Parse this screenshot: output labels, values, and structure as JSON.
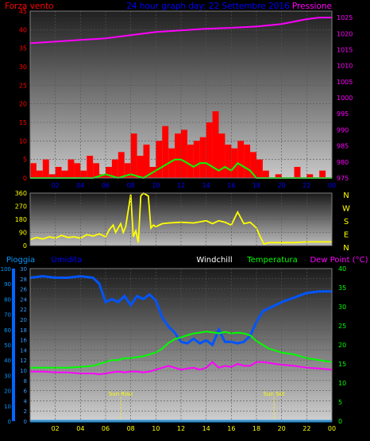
{
  "header": {
    "left_label": "Forza vento",
    "center_label": "24 hour graph day: 22 Settembre 2016",
    "right_label": "Pressione",
    "left_color": "#ff0000",
    "center_color": "#0000ff",
    "right_color": "#ff00ff"
  },
  "chart_data": [
    {
      "type": "bar",
      "id": "wind-pressure",
      "x_unit": "hour",
      "x_ticks": [
        "02",
        "04",
        "06",
        "08",
        "10",
        "12",
        "14",
        "16",
        "18",
        "20",
        "22",
        "00"
      ],
      "y_left_label": "Forza vento",
      "y_left_ticks": [
        0,
        5,
        10,
        15,
        20,
        25,
        30,
        35,
        40,
        45
      ],
      "y_left_range": [
        0,
        45
      ],
      "y_right_label": "Pressione",
      "y_right_ticks": [
        975,
        980,
        985,
        990,
        995,
        1000,
        1005,
        1010,
        1015,
        1020,
        1025
      ],
      "y_right_range": [
        975,
        1027
      ],
      "grid": true,
      "series": [
        {
          "kind": "bar",
          "color": "#ff0000",
          "axis": "left",
          "x": [
            0,
            0.5,
            1,
            1.5,
            2,
            2.5,
            3,
            3.5,
            4,
            4.5,
            5,
            5.5,
            6,
            6.5,
            7,
            7.5,
            8,
            8.5,
            9,
            9.5,
            10,
            10.5,
            11,
            11.5,
            12,
            12.5,
            13,
            13.5,
            14,
            14.5,
            15,
            15.5,
            16,
            16.5,
            17,
            17.5,
            18,
            18.5,
            19,
            19.5,
            20,
            20.5,
            21,
            21.5,
            22,
            22.5,
            23,
            23.5
          ],
          "values": [
            4,
            2,
            5,
            1,
            3,
            2,
            5,
            4,
            2,
            6,
            4,
            1,
            3,
            5,
            7,
            4,
            12,
            6,
            9,
            3,
            10,
            14,
            8,
            12,
            13,
            9,
            10,
            11,
            15,
            18,
            12,
            9,
            8,
            10,
            9,
            7,
            5,
            2,
            0,
            1,
            0,
            0,
            3,
            0,
            1,
            0,
            2,
            0
          ]
        },
        {
          "kind": "line",
          "color": "#00ff00",
          "axis": "left",
          "x": [
            0,
            2,
            4,
            5,
            6,
            7,
            8,
            9,
            10,
            10.5,
            11,
            11.5,
            12,
            12.5,
            13,
            13.5,
            14,
            14.5,
            15,
            15.5,
            16,
            16.5,
            17,
            17.5,
            18,
            19,
            20,
            22,
            24
          ],
          "values": [
            0,
            0,
            0,
            0,
            1,
            0,
            1,
            0,
            2,
            3,
            4,
            5,
            5,
            4,
            3,
            4,
            4,
            3,
            2,
            3,
            2,
            4,
            3,
            2,
            0,
            0,
            0,
            0,
            0
          ]
        },
        {
          "kind": "line",
          "color": "#ff00ff",
          "axis": "right",
          "x": [
            0,
            2,
            4,
            6,
            8,
            10,
            12,
            14,
            16,
            18,
            20,
            22,
            23,
            24
          ],
          "values": [
            1017,
            1017.5,
            1018,
            1018.5,
            1019.5,
            1020.5,
            1021,
            1021.5,
            1021.8,
            1022.2,
            1023,
            1024.5,
            1025,
            1025
          ]
        }
      ]
    },
    {
      "type": "line",
      "id": "wind-direction",
      "x_ticks": [
        "02",
        "04",
        "06",
        "08",
        "10",
        "12",
        "14",
        "16",
        "18",
        "20",
        "22",
        "00"
      ],
      "y_left_ticks": [
        0,
        90,
        180,
        270,
        360
      ],
      "y_left_range": [
        0,
        360
      ],
      "y_right_ticks": [
        "N",
        "W",
        "S",
        "E",
        "N"
      ],
      "grid": true,
      "series": [
        {
          "kind": "line",
          "color": "#ffff00",
          "x": [
            0,
            0.5,
            1,
            1.5,
            2,
            2.5,
            3,
            3.5,
            4,
            4.5,
            5,
            5.5,
            6,
            6.3,
            6.6,
            6.8,
            7,
            7.2,
            7.4,
            7.6,
            8,
            8.2,
            8.4,
            8.6,
            8.8,
            9,
            9.2,
            9.4,
            9.6,
            9.8,
            10,
            10.5,
            11,
            12,
            13,
            14,
            14.5,
            15,
            15.5,
            16,
            16.5,
            17,
            17.5,
            18,
            18.3,
            18.6,
            19,
            20,
            21,
            22,
            23,
            24
          ],
          "values": [
            40,
            55,
            45,
            60,
            50,
            70,
            55,
            60,
            50,
            75,
            65,
            80,
            60,
            110,
            140,
            90,
            120,
            150,
            90,
            130,
            350,
            60,
            100,
            20,
            340,
            360,
            350,
            340,
            120,
            140,
            130,
            150,
            155,
            160,
            155,
            170,
            150,
            170,
            160,
            140,
            230,
            150,
            160,
            120,
            60,
            10,
            20,
            20,
            20,
            25,
            25,
            25
          ]
        }
      ]
    },
    {
      "type": "line",
      "id": "temperature-humidity",
      "x_ticks": [
        "02",
        "04",
        "06",
        "08",
        "10",
        "12",
        "14",
        "16",
        "18",
        "20",
        "22",
        "00"
      ],
      "y_left_ticks": [
        0,
        10,
        20,
        30,
        40,
        50,
        60,
        70,
        80,
        90,
        100
      ],
      "y_left_range": [
        0,
        100
      ],
      "y_hum_ticks": [
        0,
        2,
        4,
        6,
        8,
        10,
        12,
        14,
        16,
        18,
        20,
        22,
        24,
        26,
        28,
        30
      ],
      "y_right_ticks": [
        0,
        5,
        10,
        15,
        20,
        25,
        30,
        35,
        40
      ],
      "y_right_range": [
        0,
        40
      ],
      "grid": true,
      "series": [
        {
          "name": "Umidita",
          "kind": "line",
          "color": "#0055ff",
          "x": [
            0,
            1,
            2,
            3,
            4,
            5,
            5.5,
            6,
            6.5,
            7,
            7.5,
            8,
            8.5,
            9,
            9.5,
            10,
            10.5,
            11,
            11.5,
            12,
            12.5,
            13,
            13.5,
            14,
            14.5,
            15,
            15.5,
            16,
            16.5,
            17,
            17.5,
            18,
            18.5,
            19,
            19.5,
            20,
            21,
            22,
            23,
            24
          ],
          "values": [
            94,
            95,
            94,
            94,
            95,
            94,
            90,
            78,
            80,
            78,
            82,
            76,
            82,
            80,
            83,
            79,
            68,
            62,
            58,
            52,
            51,
            54,
            51,
            53,
            50,
            60,
            52,
            52,
            51,
            52,
            56,
            65,
            72,
            74,
            76,
            78,
            81,
            84,
            85,
            85
          ]
        },
        {
          "name": "Pioggia",
          "kind": "line",
          "color": "#0099ff",
          "axis": "left",
          "x": [
            0,
            24
          ],
          "values": [
            0,
            0
          ]
        },
        {
          "name": "Temperatura",
          "kind": "line",
          "color": "#00ff00",
          "axis": "right",
          "x": [
            0,
            1,
            2,
            3,
            4,
            5,
            5.5,
            6,
            6.5,
            7,
            7.5,
            8,
            8.5,
            9,
            9.5,
            10,
            10.5,
            11,
            11.5,
            12,
            12.5,
            13,
            13.5,
            14,
            14.5,
            15,
            15.5,
            16,
            16.5,
            17,
            17.5,
            18,
            18.5,
            19,
            19.5,
            20,
            21,
            22,
            23,
            24
          ],
          "values": [
            14,
            14,
            14,
            14,
            14.2,
            14.5,
            15,
            15.5,
            16,
            16,
            16.5,
            16.5,
            16.8,
            17,
            17.5,
            18,
            19,
            20.5,
            21.5,
            22,
            22.5,
            23,
            23.2,
            23.5,
            23.3,
            23,
            23.4,
            23,
            23.2,
            23,
            22.5,
            21,
            20,
            19,
            18.5,
            18,
            17.5,
            16.5,
            16,
            15.5
          ]
        },
        {
          "name": "Dew Point (°C)",
          "kind": "line",
          "color": "#ff00ff",
          "axis": "right",
          "x": [
            0,
            1,
            2,
            3,
            4,
            5,
            5.5,
            6,
            6.5,
            7,
            7.5,
            8,
            8.5,
            9,
            9.5,
            10,
            10.5,
            11,
            11.5,
            12,
            12.5,
            13,
            13.5,
            14,
            14.5,
            15,
            15.5,
            16,
            16.5,
            17,
            17.5,
            18,
            18.5,
            19,
            19.5,
            20,
            21,
            22,
            23,
            24
          ],
          "values": [
            13,
            13,
            12.8,
            12.8,
            12.5,
            12.5,
            12.3,
            12.5,
            12.8,
            13,
            12.8,
            13,
            13,
            12.8,
            13,
            13.5,
            14,
            14.5,
            14,
            13.5,
            13.8,
            14,
            13.5,
            14,
            15.5,
            14,
            14.5,
            14.2,
            15,
            14.5,
            14.5,
            15.5,
            15.5,
            15.3,
            15,
            14.8,
            14.5,
            14,
            13.8,
            13.5
          ]
        }
      ],
      "labels": [
        "Pioggia",
        "Umidita",
        "Windchill",
        "Temperatura",
        "Dew Point (°C)"
      ],
      "label_colors": [
        "#0099ff",
        "#0000ff",
        "#ffffff",
        "#00ff00",
        "#ff00ff"
      ],
      "annotations": [
        {
          "text": "Sun Rise",
          "x": 7.2
        },
        {
          "text": "Sun Set",
          "x": 19.4
        }
      ]
    }
  ]
}
